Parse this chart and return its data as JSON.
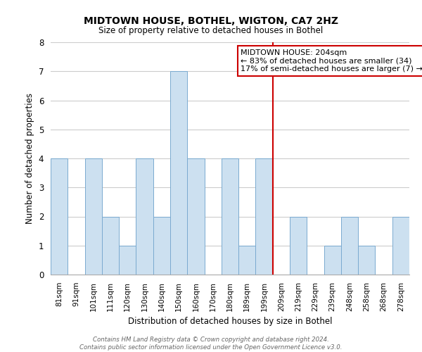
{
  "title": "MIDTOWN HOUSE, BOTHEL, WIGTON, CA7 2HZ",
  "subtitle": "Size of property relative to detached houses in Bothel",
  "xlabel": "Distribution of detached houses by size in Bothel",
  "ylabel": "Number of detached properties",
  "bin_labels": [
    "81sqm",
    "91sqm",
    "101sqm",
    "111sqm",
    "120sqm",
    "130sqm",
    "140sqm",
    "150sqm",
    "160sqm",
    "170sqm",
    "180sqm",
    "189sqm",
    "199sqm",
    "209sqm",
    "219sqm",
    "229sqm",
    "239sqm",
    "248sqm",
    "258sqm",
    "268sqm",
    "278sqm"
  ],
  "bar_values": [
    4,
    0,
    4,
    2,
    1,
    4,
    2,
    7,
    4,
    0,
    4,
    1,
    4,
    0,
    2,
    0,
    1,
    2,
    1,
    0,
    2
  ],
  "bar_color": "#cce0f0",
  "bar_edge_color": "#7aaad0",
  "vline_x_index": 13,
  "vline_color": "#cc0000",
  "annotation_title": "MIDTOWN HOUSE: 204sqm",
  "annotation_line1": "← 83% of detached houses are smaller (34)",
  "annotation_line2": "17% of semi-detached houses are larger (7) →",
  "annotation_box_color": "#ffffff",
  "annotation_box_edge": "#cc0000",
  "ylim": [
    0,
    8
  ],
  "yticks": [
    0,
    1,
    2,
    3,
    4,
    5,
    6,
    7,
    8
  ],
  "footer1": "Contains HM Land Registry data © Crown copyright and database right 2024.",
  "footer2": "Contains public sector information licensed under the Open Government Licence v3.0."
}
